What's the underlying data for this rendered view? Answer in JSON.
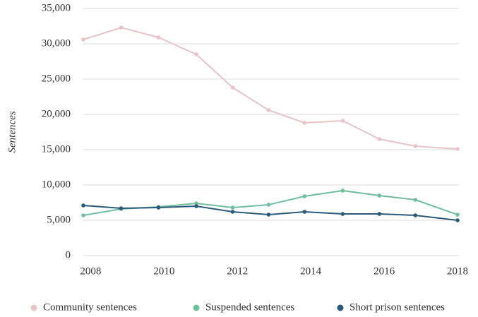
{
  "chart_data": {
    "type": "line",
    "y_label": "Sentences",
    "x": [
      2007.8,
      2008.83,
      2009.85,
      2010.88,
      2011.87,
      2012.85,
      2013.83,
      2014.87,
      2015.87,
      2016.85,
      2018
    ],
    "series": [
      {
        "name": "Community sentences",
        "color": "#e8c3c8",
        "values": [
          30600,
          32300,
          30900,
          28500,
          23800,
          20600,
          18800,
          19100,
          16500,
          15500,
          15100
        ]
      },
      {
        "name": "Suspended sentences",
        "color": "#6fbf9f",
        "values": [
          5700,
          6600,
          6900,
          7400,
          6800,
          7200,
          8400,
          9200,
          8500,
          7900,
          5800
        ]
      },
      {
        "name": "Short prison sentences",
        "color": "#2b5a7b",
        "values": [
          7100,
          6700,
          6800,
          7000,
          6200,
          5800,
          6200,
          5900,
          5900,
          5700,
          5000
        ]
      }
    ],
    "xlim": [
      2007.8,
      2018
    ],
    "xticks": [
      2008,
      2010,
      2012,
      2014,
      2016,
      2018
    ],
    "ylim": [
      0,
      35000
    ],
    "yticks": [
      0,
      {
        "value": 5000,
        "label": "5,000"
      },
      {
        "value": 10000,
        "label": "10,000"
      },
      {
        "value": 15000,
        "label": "15,000"
      },
      {
        "value": 20000,
        "label": "20,000"
      },
      {
        "value": 25000,
        "label": "25,000"
      },
      {
        "value": 30000,
        "label": "30,000"
      },
      {
        "value": 35000,
        "label": "35,000"
      }
    ],
    "grid": true,
    "legend": "bottom"
  }
}
